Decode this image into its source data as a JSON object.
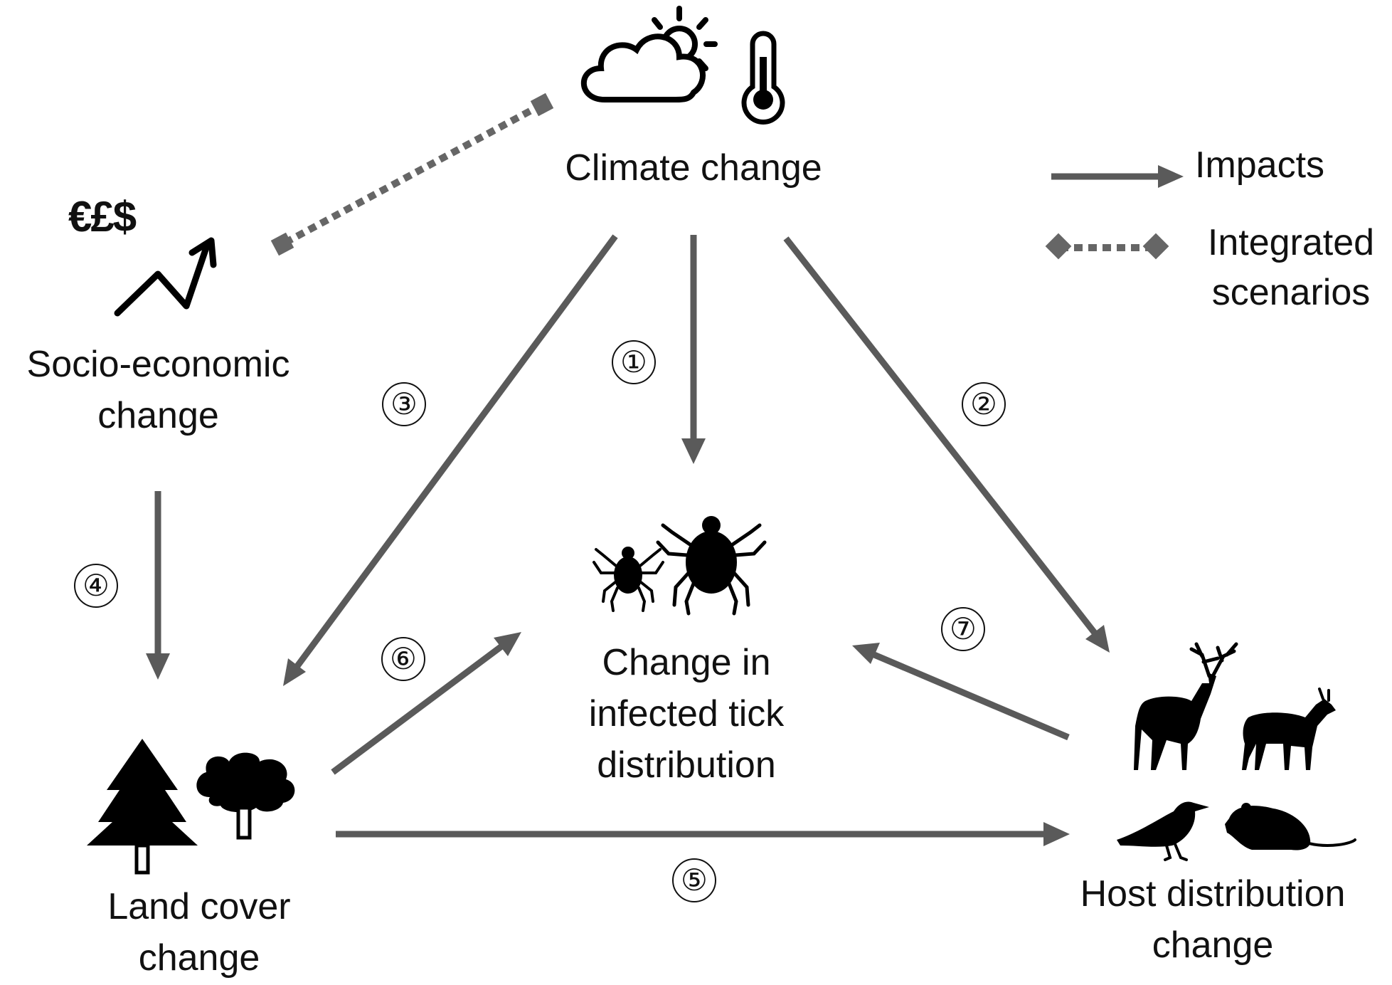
{
  "nodes": {
    "climate": "Climate change",
    "socio_line1": "Socio-economic",
    "socio_line2": "change",
    "land_line1": "Land cover",
    "land_line2": "change",
    "tick_line1": "Change in",
    "tick_line2": "infected tick",
    "tick_line3": "distribution",
    "host_line1": "Host distribution",
    "host_line2": "change"
  },
  "currency_symbols": "€£$",
  "legend": {
    "impacts": "Impacts",
    "integrated_line1": "Integrated",
    "integrated_line2": "scenarios"
  },
  "edges": {
    "e1": "①",
    "e2": "②",
    "e3": "③",
    "e4": "④",
    "e5": "⑤",
    "e6": "⑥",
    "e7": "⑦"
  },
  "colors": {
    "arrow": "#555555",
    "icon": "#000000",
    "text": "#111111"
  },
  "icons": [
    "sun-cloud-icon",
    "thermometer-icon",
    "trend-arrow-icon",
    "tick-icon",
    "pine-tree-icon",
    "deciduous-tree-icon",
    "deer-icon",
    "antelope-icon",
    "crow-icon",
    "rat-icon"
  ]
}
